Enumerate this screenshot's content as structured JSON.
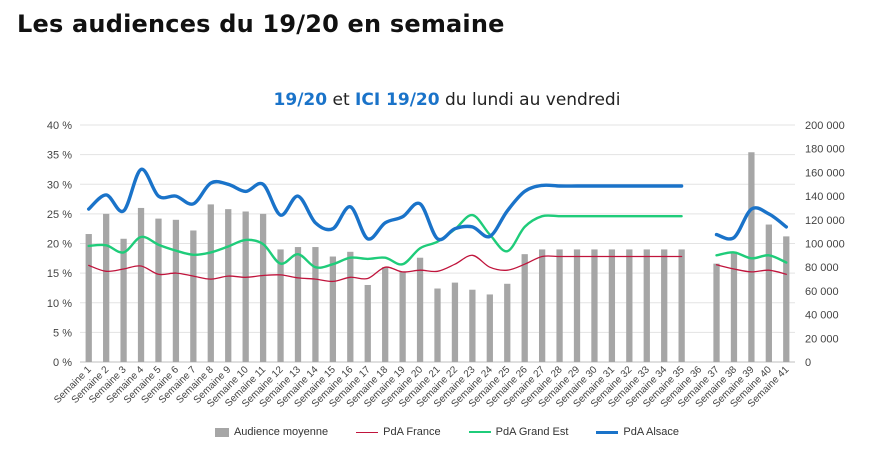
{
  "page": {
    "title": "Les audiences du 19/20 en semaine"
  },
  "chart_data": {
    "type": "bar",
    "title_parts": [
      "19/20",
      " et ",
      "ICI 19/20",
      " du lundi au vendredi"
    ],
    "categories": [
      "Semaine 1",
      "Semaine 2",
      "Semaine 3",
      "Semaine 4",
      "Semaine 5",
      "Semaine 6",
      "Semaine 7",
      "Semaine 8",
      "Semaine 9",
      "Semaine 10",
      "Semaine 11",
      "Semaine 12",
      "Semaine 13",
      "Semaine 14",
      "Semaine 15",
      "Semaine 16",
      "Semaine 17",
      "Semaine 18",
      "Semaine 19",
      "Semaine 20",
      "Semaine 21",
      "Semaine 22",
      "Semaine 23",
      "Semaine 24",
      "Semaine 25",
      "Semaine 26",
      "Semaine 27",
      "Semaine 28",
      "Semaine 29",
      "Semaine 30",
      "Semaine 31",
      "Semaine 32",
      "Semaine 33",
      "Semaine 34",
      "Semaine 35",
      "Semaine 36",
      "Semaine 37",
      "Semaine 38",
      "Semaine 39",
      "Semaine 40",
      "Semaine 41"
    ],
    "left_axis": {
      "ylim": [
        0,
        40
      ],
      "ticks": [
        "0 %",
        "5 %",
        "10 %",
        "15 %",
        "20 %",
        "25 %",
        "30 %",
        "35 %",
        "40 %"
      ]
    },
    "right_axis": {
      "ylim": [
        0,
        200000
      ],
      "ticks": [
        "0",
        "20 000",
        "40 000",
        "60 000",
        "80 000",
        "100 000",
        "120 000",
        "140 000",
        "160 000",
        "180 000",
        "200 000"
      ]
    },
    "grid": true,
    "legend_position": "bottom",
    "series": [
      {
        "name": "Audience moyenne",
        "kind": "bar",
        "axis": "right",
        "color": "#a6a6a6",
        "values": [
          108000,
          125000,
          104000,
          130000,
          121000,
          120000,
          111000,
          133000,
          129000,
          127000,
          125000,
          95000,
          97000,
          97000,
          89000,
          93000,
          65000,
          80000,
          76000,
          88000,
          62000,
          67000,
          61000,
          57000,
          66000,
          91000,
          95000,
          95000,
          95000,
          95000,
          95000,
          95000,
          95000,
          95000,
          95000,
          null,
          83000,
          93000,
          177000,
          116000,
          106000
        ]
      },
      {
        "name": "PdA France",
        "kind": "line",
        "axis": "left",
        "color": "#c0143c",
        "values": [
          16.3,
          15.3,
          15.7,
          16.2,
          14.8,
          15.0,
          14.5,
          14.0,
          14.5,
          14.3,
          14.6,
          14.7,
          14.2,
          14.0,
          13.6,
          14.3,
          14.1,
          16.0,
          15.2,
          15.5,
          15.3,
          16.5,
          18.0,
          16.0,
          15.5,
          16.5,
          17.8,
          17.8,
          17.8,
          17.8,
          17.8,
          17.8,
          17.8,
          17.8,
          17.8,
          null,
          16.4,
          15.7,
          15.2,
          15.5,
          14.8
        ]
      },
      {
        "name": "PdA Grand Est",
        "kind": "line",
        "axis": "left",
        "color": "#1fcc7a",
        "values": [
          19.6,
          19.7,
          18.5,
          21.1,
          19.8,
          18.8,
          18.1,
          18.5,
          19.5,
          20.6,
          19.9,
          16.6,
          18.2,
          16.0,
          16.5,
          17.6,
          17.4,
          17.6,
          16.5,
          19.2,
          20.3,
          22.4,
          24.8,
          21.5,
          18.7,
          22.8,
          24.6,
          24.6,
          24.6,
          24.6,
          24.6,
          24.6,
          24.6,
          24.6,
          24.6,
          null,
          18.0,
          18.5,
          17.5,
          18.0,
          16.8
        ]
      },
      {
        "name": "PdA Alsace",
        "kind": "line",
        "axis": "left",
        "color": "#1a73c9",
        "values": [
          25.8,
          28.2,
          25.5,
          32.5,
          28.0,
          28.0,
          26.7,
          30.2,
          30.0,
          28.8,
          30.0,
          24.8,
          28.0,
          23.5,
          22.5,
          26.2,
          20.8,
          23.5,
          24.5,
          26.7,
          20.8,
          22.5,
          22.8,
          21.2,
          25.5,
          28.8,
          29.8,
          29.7,
          29.7,
          29.7,
          29.7,
          29.7,
          29.7,
          29.7,
          29.7,
          null,
          21.5,
          21.0,
          25.8,
          25.0,
          22.8
        ]
      }
    ]
  }
}
